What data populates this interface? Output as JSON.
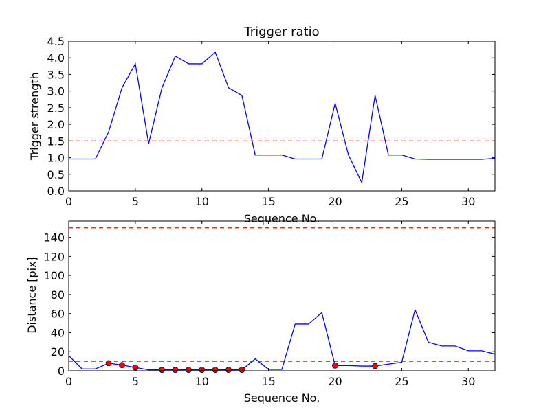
{
  "chart_data": [
    {
      "type": "line",
      "title": "Trigger ratio",
      "xlabel": "Sequence No.",
      "ylabel": "Trigger strength",
      "xlim": [
        0,
        32
      ],
      "ylim": [
        0,
        4.5
      ],
      "xticks": [
        0,
        5,
        10,
        15,
        20,
        25,
        30
      ],
      "yticks": [
        0,
        0.5,
        1.0,
        1.5,
        2.0,
        2.5,
        3.0,
        3.5,
        4.0,
        4.5
      ],
      "ytick_labels": [
        "0.0",
        "0.5",
        "1.0",
        "1.5",
        "2.0",
        "2.5",
        "3.0",
        "3.5",
        "4.0",
        "4.5"
      ],
      "grid": false,
      "series": [
        {
          "color": "#0000ff",
          "style": "solid",
          "x": [
            0,
            1,
            2,
            3,
            4,
            5,
            6,
            7,
            8,
            9,
            10,
            11,
            12,
            13,
            14,
            15,
            16,
            17,
            18,
            19,
            20,
            21,
            22,
            23,
            24,
            25,
            26,
            27,
            28,
            29,
            30,
            31,
            32
          ],
          "y": [
            0.96,
            0.96,
            0.96,
            1.78,
            3.1,
            3.82,
            1.42,
            3.1,
            4.05,
            3.82,
            3.82,
            4.17,
            3.1,
            2.87,
            1.08,
            1.08,
            1.08,
            0.96,
            0.96,
            0.96,
            2.63,
            1.08,
            0.25,
            2.87,
            1.08,
            1.08,
            0.96,
            0.95,
            0.95,
            0.95,
            0.95,
            0.95,
            0.98
          ]
        }
      ],
      "hlines": [
        {
          "y": 1.5,
          "color": "#ff0000",
          "style": "dashed"
        }
      ]
    },
    {
      "type": "line",
      "title": "",
      "xlabel": "Sequence No.",
      "ylabel": "Distance [pix]",
      "xlim": [
        0,
        32
      ],
      "ylim": [
        0,
        157
      ],
      "xticks": [
        0,
        5,
        10,
        15,
        20,
        25,
        30
      ],
      "yticks": [
        0,
        20,
        40,
        60,
        80,
        100,
        120,
        140
      ],
      "ytick_labels": [
        "0",
        "20",
        "40",
        "60",
        "80",
        "100",
        "120",
        "140"
      ],
      "grid": false,
      "series": [
        {
          "color": "#0000ff",
          "style": "solid",
          "x": [
            0,
            1,
            2,
            3,
            4,
            5,
            6,
            7,
            8,
            9,
            10,
            11,
            12,
            13,
            14,
            15,
            16,
            17,
            18,
            19,
            20,
            21,
            22,
            23,
            24,
            25,
            26,
            27,
            28,
            29,
            30,
            31,
            32
          ],
          "y": [
            16,
            2,
            2,
            8,
            6,
            3.5,
            1,
            1,
            1,
            1,
            1,
            1,
            1,
            1,
            12.5,
            1.5,
            1.5,
            49,
            49,
            61,
            5.5,
            5.5,
            5,
            5,
            7,
            9,
            64,
            30,
            26,
            26,
            21,
            21,
            17.5
          ]
        }
      ],
      "markers": {
        "color": "#ff0000",
        "x": [
          3,
          4,
          5,
          7,
          8,
          9,
          10,
          11,
          12,
          13,
          20,
          23
        ],
        "y": [
          8,
          6,
          3.5,
          1,
          1,
          1,
          1,
          1,
          1,
          1,
          5.5,
          5
        ]
      },
      "hlines": [
        {
          "y": 150,
          "color": "#ff0000",
          "style": "dashed"
        },
        {
          "y": 10,
          "color": "#ff0000",
          "style": "dashed"
        }
      ]
    }
  ]
}
